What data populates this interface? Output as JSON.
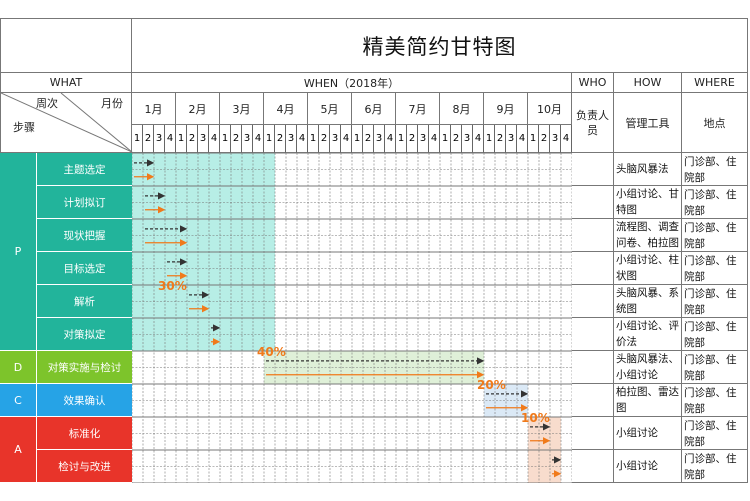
{
  "title": "精美简约甘特图",
  "headers": {
    "what": "WHAT",
    "when": "WHEN（2018年）",
    "who": "WHO",
    "how": "HOW",
    "where": "WHERE",
    "week_label": "周次",
    "month_label": "月份",
    "step_label": "步骤",
    "owner": "负责人员",
    "tool": "管理工具",
    "place": "地点"
  },
  "months": [
    "1月",
    "2月",
    "3月",
    "4月",
    "5月",
    "6月",
    "7月",
    "8月",
    "9月",
    "10月"
  ],
  "weeks": [
    "1",
    "2",
    "3",
    "4"
  ],
  "phases": [
    {
      "label": "P",
      "color": "#22b49b",
      "rows": 6
    },
    {
      "label": "D",
      "color": "#7dc42b",
      "rows": 1
    },
    {
      "label": "C",
      "color": "#26a3e6",
      "rows": 1
    },
    {
      "label": "A",
      "color": "#e8342a",
      "rows": 2
    }
  ],
  "steps": [
    {
      "name": "主题选定",
      "tool": "头脑风暴法",
      "place": "门诊部、住院部",
      "plan": [
        1,
        2
      ],
      "actual": [
        1,
        2
      ]
    },
    {
      "name": "计划拟订",
      "tool": "小组讨论、甘特图",
      "place": "门诊部、住院部",
      "plan": [
        2,
        3
      ],
      "actual": [
        2,
        3
      ]
    },
    {
      "name": "现状把握",
      "tool": "流程图、调查问卷、柏拉图",
      "place": "门诊部、住院部",
      "plan": [
        2,
        5
      ],
      "actual": [
        2,
        5
      ]
    },
    {
      "name": "目标选定",
      "tool": "小组讨论、柱状图",
      "place": "门诊部、住院部",
      "plan": [
        4,
        5
      ],
      "actual": [
        4,
        5
      ]
    },
    {
      "name": "解析",
      "tool": "头脑风暴、系统图",
      "place": "门诊部、住院部",
      "plan": [
        6,
        7
      ],
      "actual": [
        6,
        7
      ]
    },
    {
      "name": "对策拟定",
      "tool": "小组讨论、评价法",
      "place": "门诊部、住院部",
      "plan": [
        8,
        8
      ],
      "actual": [
        8,
        8
      ]
    },
    {
      "name": "对策实施与检讨",
      "tool": "头脑风暴法、小组讨论",
      "place": "门诊部、住院部",
      "plan": [
        13,
        32
      ],
      "actual": [
        13,
        32
      ]
    },
    {
      "name": "效果确认",
      "tool": "柏拉图、雷达图",
      "place": "门诊部、住院部",
      "plan": [
        33,
        36
      ],
      "actual": [
        33,
        36
      ]
    },
    {
      "name": "标准化",
      "tool": "小组讨论",
      "place": "门诊部、住院部",
      "plan": [
        37,
        38
      ],
      "actual": [
        37,
        38
      ]
    },
    {
      "name": "检讨与改进",
      "tool": "小组讨论",
      "place": "门诊部、住院部",
      "plan": [
        39,
        39
      ],
      "actual": [
        39,
        39
      ]
    }
  ],
  "highlights": [
    {
      "color": "#b7eee6",
      "start": 1,
      "end": 13,
      "rowStart": 0,
      "rowEnd": 6,
      "pct": "30%",
      "pctWeek": 1,
      "pctRow": 4
    },
    {
      "color": "#dff0d8",
      "start": 13,
      "end": 32,
      "rowStart": 6,
      "rowEnd": 7,
      "pct": "40%",
      "pctWeek": 10,
      "pctRow": 6
    },
    {
      "color": "#dbe9f6",
      "start": 33,
      "end": 36,
      "rowStart": 7,
      "rowEnd": 8,
      "pct": "20%",
      "pctWeek": 30,
      "pctRow": 7
    },
    {
      "color": "#f8dccd",
      "start": 37,
      "end": 39,
      "rowStart": 8,
      "rowEnd": 10,
      "pct": "10%",
      "pctWeek": 34,
      "pctRow": 8
    }
  ]
}
